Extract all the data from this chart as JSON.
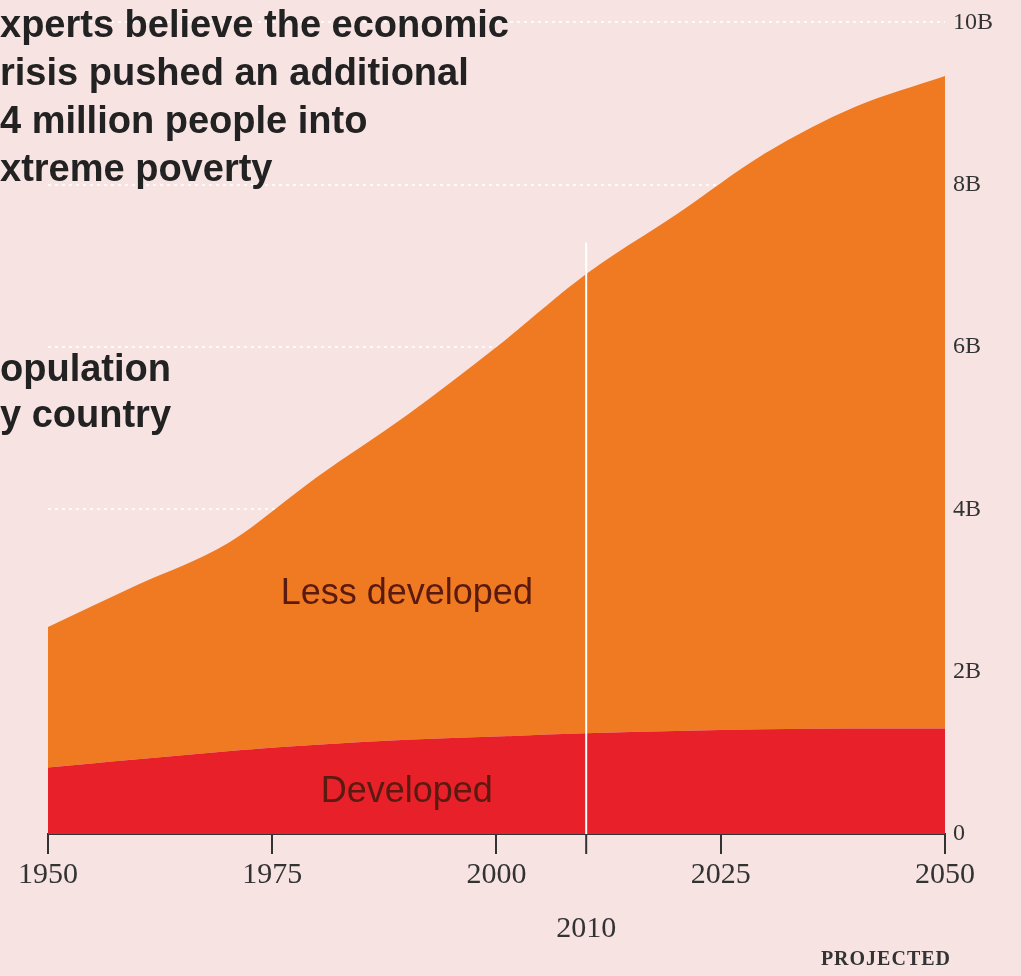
{
  "chart_data": {
    "type": "area",
    "title": "opulation\ny country",
    "subtitle": "xperts believe the economic\nrisis pushed an additional\n4 million people into\nxtreme poverty",
    "x": [
      1950,
      1960,
      1970,
      1980,
      1990,
      2000,
      2010,
      2020,
      2030,
      2040,
      2050
    ],
    "series": [
      {
        "name": "Developed",
        "color": "#e8202a",
        "values": [
          0.82,
          0.92,
          1.02,
          1.1,
          1.16,
          1.2,
          1.24,
          1.27,
          1.29,
          1.3,
          1.3
        ]
      },
      {
        "name": "Less developed",
        "color": "#f07a22",
        "values": [
          1.73,
          2.15,
          2.56,
          3.3,
          4.0,
          4.8,
          5.66,
          6.36,
          7.1,
          7.66,
          8.04
        ]
      }
    ],
    "stacked": true,
    "xlim": [
      1950,
      2050
    ],
    "xticks": [
      1950,
      1975,
      2000,
      2025,
      2050
    ],
    "ylim": [
      0,
      10
    ],
    "yticks": [
      0,
      {
        "value": 2,
        "label": "2B"
      },
      {
        "value": 4,
        "label": "4B"
      },
      {
        "value": 6,
        "label": "6B"
      },
      {
        "value": 8,
        "label": "8B"
      },
      {
        "value": 10,
        "label": "10B"
      }
    ],
    "ref_lines": [
      {
        "axis": "x",
        "value": 2010,
        "label": "2010",
        "color": "#ffffff"
      }
    ],
    "annotations": [
      "PROJECTED"
    ],
    "grid": "y",
    "legend": false
  }
}
